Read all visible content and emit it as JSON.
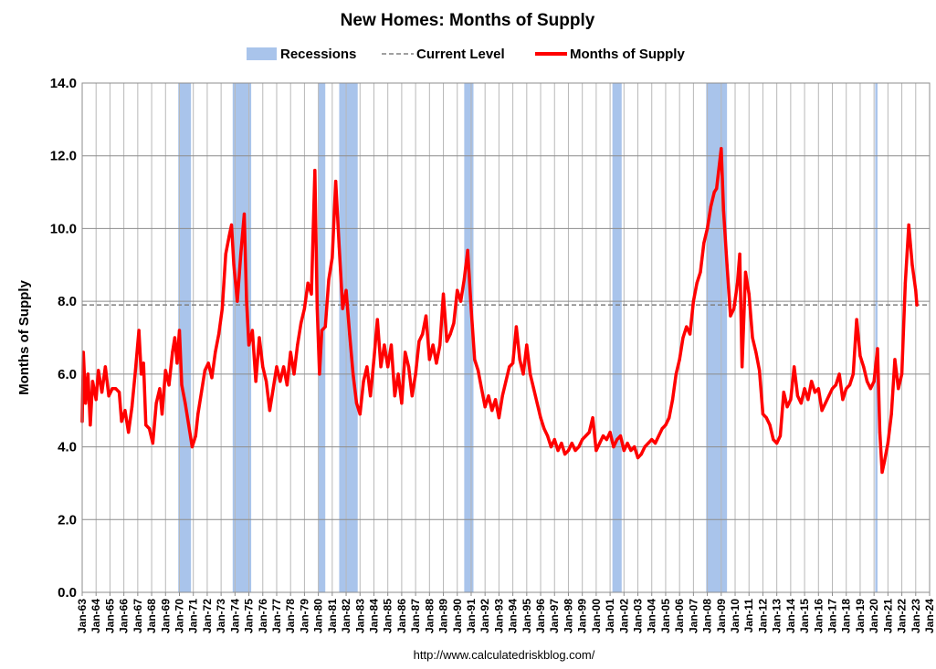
{
  "chart_data": {
    "type": "line",
    "title": "New Homes: Months of Supply",
    "ylabel": "Months of Supply",
    "xlabel": "",
    "source": "http://www.calculatedriskblog.com/",
    "ylim": [
      0,
      14
    ],
    "xlim": [
      "Jan-63",
      "Jan-24"
    ],
    "y_ticks": [
      "0.0",
      "2.0",
      "4.0",
      "6.0",
      "8.0",
      "10.0",
      "12.0",
      "14.0"
    ],
    "x_ticks": [
      "Jan-63",
      "Jan-64",
      "Jan-65",
      "Jan-66",
      "Jan-67",
      "Jan-68",
      "Jan-69",
      "Jan-70",
      "Jan-71",
      "Jan-72",
      "Jan-73",
      "Jan-74",
      "Jan-75",
      "Jan-76",
      "Jan-77",
      "Jan-78",
      "Jan-79",
      "Jan-80",
      "Jan-81",
      "Jan-82",
      "Jan-83",
      "Jan-84",
      "Jan-85",
      "Jan-86",
      "Jan-87",
      "Jan-88",
      "Jan-89",
      "Jan-90",
      "Jan-91",
      "Jan-92",
      "Jan-93",
      "Jan-94",
      "Jan-95",
      "Jan-96",
      "Jan-97",
      "Jan-98",
      "Jan-99",
      "Jan-00",
      "Jan-01",
      "Jan-02",
      "Jan-03",
      "Jan-04",
      "Jan-05",
      "Jan-06",
      "Jan-07",
      "Jan-08",
      "Jan-09",
      "Jan-10",
      "Jan-11",
      "Jan-12",
      "Jan-13",
      "Jan-14",
      "Jan-15",
      "Jan-16",
      "Jan-17",
      "Jan-18",
      "Jan-19",
      "Jan-20",
      "Jan-21",
      "Jan-22",
      "Jan-23",
      "Jan-24"
    ],
    "grid": true,
    "legend_position": "top-center",
    "legend": [
      {
        "name": "Recessions",
        "kind": "band",
        "color": "#a9c4eb"
      },
      {
        "name": "Current Level",
        "kind": "dashed",
        "color": "#808080"
      },
      {
        "name": "Months of Supply",
        "kind": "line",
        "color": "#ff0000"
      }
    ],
    "current_level": 7.9,
    "recessions": [
      {
        "start": "Dec-69",
        "end": "Nov-70"
      },
      {
        "start": "Nov-73",
        "end": "Mar-75"
      },
      {
        "start": "Jan-80",
        "end": "Jul-80"
      },
      {
        "start": "Jul-81",
        "end": "Nov-82"
      },
      {
        "start": "Jul-90",
        "end": "Mar-91"
      },
      {
        "start": "Mar-01",
        "end": "Nov-01"
      },
      {
        "start": "Dec-07",
        "end": "Jun-09"
      },
      {
        "start": "Feb-20",
        "end": "Apr-20"
      }
    ],
    "series": [
      {
        "name": "Months of Supply",
        "color": "#ff0000",
        "points": [
          [
            "Jan-63",
            4.7
          ],
          [
            "Feb-63",
            6.6
          ],
          [
            "Apr-63",
            5.2
          ],
          [
            "Jun-63",
            6.0
          ],
          [
            "Aug-63",
            4.6
          ],
          [
            "Oct-63",
            5.8
          ],
          [
            "Jan-64",
            5.3
          ],
          [
            "Mar-64",
            6.1
          ],
          [
            "Jun-64",
            5.5
          ],
          [
            "Sep-64",
            6.2
          ],
          [
            "Dec-64",
            5.4
          ],
          [
            "Mar-65",
            5.6
          ],
          [
            "Jun-65",
            5.6
          ],
          [
            "Sep-65",
            5.5
          ],
          [
            "Nov-65",
            4.7
          ],
          [
            "Feb-66",
            5.0
          ],
          [
            "May-66",
            4.4
          ],
          [
            "Aug-66",
            5.1
          ],
          [
            "Nov-66",
            6.1
          ],
          [
            "Feb-67",
            7.2
          ],
          [
            "Apr-67",
            6.0
          ],
          [
            "Jun-67",
            6.3
          ],
          [
            "Aug-67",
            4.6
          ],
          [
            "Nov-67",
            4.5
          ],
          [
            "Feb-68",
            4.1
          ],
          [
            "May-68",
            5.2
          ],
          [
            "Aug-68",
            5.6
          ],
          [
            "Oct-68",
            4.9
          ],
          [
            "Jan-69",
            6.1
          ],
          [
            "Apr-69",
            5.7
          ],
          [
            "Jul-69",
            6.6
          ],
          [
            "Sep-69",
            7.0
          ],
          [
            "Nov-69",
            6.3
          ],
          [
            "Jan-70",
            7.2
          ],
          [
            "Mar-70",
            5.7
          ],
          [
            "Jun-70",
            5.2
          ],
          [
            "Sep-70",
            4.6
          ],
          [
            "Dec-70",
            4.0
          ],
          [
            "Mar-71",
            4.3
          ],
          [
            "May-71",
            4.9
          ],
          [
            "Aug-71",
            5.5
          ],
          [
            "Nov-71",
            6.1
          ],
          [
            "Feb-72",
            6.3
          ],
          [
            "May-72",
            5.9
          ],
          [
            "Aug-72",
            6.6
          ],
          [
            "Nov-72",
            7.1
          ],
          [
            "Feb-73",
            7.8
          ],
          [
            "May-73",
            9.3
          ],
          [
            "Aug-73",
            9.8
          ],
          [
            "Oct-73",
            10.1
          ],
          [
            "Dec-73",
            9.0
          ],
          [
            "Mar-74",
            8.0
          ],
          [
            "Jun-74",
            9.3
          ],
          [
            "Sep-74",
            10.4
          ],
          [
            "Nov-74",
            8.0
          ],
          [
            "Jan-75",
            6.8
          ],
          [
            "Apr-75",
            7.2
          ],
          [
            "Jul-75",
            5.8
          ],
          [
            "Oct-75",
            7.0
          ],
          [
            "Jan-76",
            6.2
          ],
          [
            "Apr-76",
            5.8
          ],
          [
            "Jul-76",
            5.0
          ],
          [
            "Oct-76",
            5.6
          ],
          [
            "Jan-77",
            6.2
          ],
          [
            "Apr-77",
            5.8
          ],
          [
            "Jul-77",
            6.2
          ],
          [
            "Oct-77",
            5.7
          ],
          [
            "Jan-78",
            6.6
          ],
          [
            "Apr-78",
            6.0
          ],
          [
            "Jul-78",
            6.8
          ],
          [
            "Oct-78",
            7.4
          ],
          [
            "Jan-79",
            7.8
          ],
          [
            "Apr-79",
            8.5
          ],
          [
            "Jul-79",
            8.2
          ],
          [
            "Oct-79",
            11.6
          ],
          [
            "Dec-79",
            7.8
          ],
          [
            "Feb-80",
            6.0
          ],
          [
            "Apr-80",
            7.2
          ],
          [
            "Jul-80",
            7.3
          ],
          [
            "Oct-80",
            8.6
          ],
          [
            "Jan-81",
            9.2
          ],
          [
            "Apr-81",
            11.3
          ],
          [
            "Jul-81",
            9.5
          ],
          [
            "Oct-81",
            7.8
          ],
          [
            "Jan-82",
            8.3
          ],
          [
            "Apr-82",
            7.1
          ],
          [
            "Jul-82",
            6.0
          ],
          [
            "Oct-82",
            5.2
          ],
          [
            "Jan-83",
            4.9
          ],
          [
            "Apr-83",
            5.8
          ],
          [
            "Jul-83",
            6.2
          ],
          [
            "Oct-83",
            5.4
          ],
          [
            "Jan-84",
            6.4
          ],
          [
            "Apr-84",
            7.5
          ],
          [
            "Jul-84",
            6.2
          ],
          [
            "Oct-84",
            6.8
          ],
          [
            "Jan-85",
            6.2
          ],
          [
            "Apr-85",
            6.8
          ],
          [
            "Jul-85",
            5.4
          ],
          [
            "Oct-85",
            6.0
          ],
          [
            "Jan-86",
            5.2
          ],
          [
            "Apr-86",
            6.6
          ],
          [
            "Jul-86",
            6.2
          ],
          [
            "Oct-86",
            5.4
          ],
          [
            "Jan-87",
            6.0
          ],
          [
            "Apr-87",
            6.9
          ],
          [
            "Jul-87",
            7.1
          ],
          [
            "Oct-87",
            7.6
          ],
          [
            "Jan-88",
            6.4
          ],
          [
            "Apr-88",
            6.8
          ],
          [
            "Jul-88",
            6.3
          ],
          [
            "Oct-88",
            6.8
          ],
          [
            "Jan-89",
            8.2
          ],
          [
            "Apr-89",
            6.9
          ],
          [
            "Jul-89",
            7.1
          ],
          [
            "Oct-89",
            7.4
          ],
          [
            "Jan-90",
            8.3
          ],
          [
            "Apr-90",
            8.0
          ],
          [
            "Jul-90",
            8.6
          ],
          [
            "Oct-90",
            9.4
          ],
          [
            "Jan-91",
            7.8
          ],
          [
            "Apr-91",
            6.4
          ],
          [
            "Jul-91",
            6.1
          ],
          [
            "Oct-91",
            5.6
          ],
          [
            "Jan-92",
            5.1
          ],
          [
            "Apr-92",
            5.4
          ],
          [
            "Jul-92",
            5.0
          ],
          [
            "Oct-92",
            5.3
          ],
          [
            "Jan-93",
            4.8
          ],
          [
            "Apr-93",
            5.4
          ],
          [
            "Jul-93",
            5.8
          ],
          [
            "Oct-93",
            6.2
          ],
          [
            "Jan-94",
            6.3
          ],
          [
            "Apr-94",
            7.3
          ],
          [
            "Jul-94",
            6.4
          ],
          [
            "Oct-94",
            6.0
          ],
          [
            "Jan-95",
            6.8
          ],
          [
            "Apr-95",
            6.0
          ],
          [
            "Jul-95",
            5.6
          ],
          [
            "Oct-95",
            5.2
          ],
          [
            "Jan-96",
            4.8
          ],
          [
            "Apr-96",
            4.5
          ],
          [
            "Jul-96",
            4.3
          ],
          [
            "Oct-96",
            4.0
          ],
          [
            "Jan-97",
            4.2
          ],
          [
            "Apr-97",
            3.9
          ],
          [
            "Jul-97",
            4.1
          ],
          [
            "Oct-97",
            3.8
          ],
          [
            "Jan-98",
            3.9
          ],
          [
            "Apr-98",
            4.1
          ],
          [
            "Jul-98",
            3.9
          ],
          [
            "Oct-98",
            4.0
          ],
          [
            "Jan-99",
            4.2
          ],
          [
            "Apr-99",
            4.3
          ],
          [
            "Jul-99",
            4.4
          ],
          [
            "Oct-99",
            4.8
          ],
          [
            "Jan-00",
            3.9
          ],
          [
            "Apr-00",
            4.1
          ],
          [
            "Jul-00",
            4.3
          ],
          [
            "Oct-00",
            4.2
          ],
          [
            "Jan-01",
            4.4
          ],
          [
            "Apr-01",
            4.0
          ],
          [
            "Jul-01",
            4.2
          ],
          [
            "Oct-01",
            4.3
          ],
          [
            "Jan-02",
            3.9
          ],
          [
            "Apr-02",
            4.1
          ],
          [
            "Jul-02",
            3.9
          ],
          [
            "Oct-02",
            4.0
          ],
          [
            "Jan-03",
            3.7
          ],
          [
            "Apr-03",
            3.8
          ],
          [
            "Jul-03",
            4.0
          ],
          [
            "Oct-03",
            4.1
          ],
          [
            "Jan-04",
            4.2
          ],
          [
            "Apr-04",
            4.1
          ],
          [
            "Jul-04",
            4.3
          ],
          [
            "Oct-04",
            4.5
          ],
          [
            "Jan-05",
            4.6
          ],
          [
            "Apr-05",
            4.8
          ],
          [
            "Jul-05",
            5.3
          ],
          [
            "Oct-05",
            6.0
          ],
          [
            "Jan-06",
            6.4
          ],
          [
            "Apr-06",
            7.0
          ],
          [
            "Jul-06",
            7.3
          ],
          [
            "Oct-06",
            7.1
          ],
          [
            "Jan-07",
            8.0
          ],
          [
            "Apr-07",
            8.5
          ],
          [
            "Jul-07",
            8.8
          ],
          [
            "Oct-07",
            9.6
          ],
          [
            "Jan-08",
            10.0
          ],
          [
            "Apr-08",
            10.6
          ],
          [
            "Jul-08",
            11.0
          ],
          [
            "Sep-08",
            11.1
          ],
          [
            "Jan-09",
            12.2
          ],
          [
            "Mar-09",
            10.5
          ],
          [
            "Jun-09",
            9.0
          ],
          [
            "Sep-09",
            7.6
          ],
          [
            "Dec-09",
            7.8
          ],
          [
            "Mar-10",
            8.5
          ],
          [
            "May-10",
            9.3
          ],
          [
            "Jul-10",
            6.2
          ],
          [
            "Oct-10",
            8.8
          ],
          [
            "Jan-11",
            8.2
          ],
          [
            "Apr-11",
            7.0
          ],
          [
            "Jul-11",
            6.6
          ],
          [
            "Oct-11",
            6.1
          ],
          [
            "Jan-12",
            4.9
          ],
          [
            "Apr-12",
            4.8
          ],
          [
            "Jul-12",
            4.6
          ],
          [
            "Oct-12",
            4.2
          ],
          [
            "Jan-13",
            4.1
          ],
          [
            "Apr-13",
            4.3
          ],
          [
            "Jul-13",
            5.5
          ],
          [
            "Oct-13",
            5.1
          ],
          [
            "Jan-14",
            5.3
          ],
          [
            "Apr-14",
            6.2
          ],
          [
            "Jul-14",
            5.4
          ],
          [
            "Oct-14",
            5.2
          ],
          [
            "Jan-15",
            5.6
          ],
          [
            "Apr-15",
            5.3
          ],
          [
            "Jul-15",
            5.8
          ],
          [
            "Oct-15",
            5.5
          ],
          [
            "Jan-16",
            5.6
          ],
          [
            "Apr-16",
            5.0
          ],
          [
            "Jul-16",
            5.2
          ],
          [
            "Oct-16",
            5.4
          ],
          [
            "Jan-17",
            5.6
          ],
          [
            "Apr-17",
            5.7
          ],
          [
            "Jul-17",
            6.0
          ],
          [
            "Oct-17",
            5.3
          ],
          [
            "Jan-18",
            5.6
          ],
          [
            "Apr-18",
            5.7
          ],
          [
            "Jul-18",
            6.0
          ],
          [
            "Oct-18",
            7.5
          ],
          [
            "Jan-19",
            6.5
          ],
          [
            "Apr-19",
            6.2
          ],
          [
            "Jul-19",
            5.8
          ],
          [
            "Oct-19",
            5.6
          ],
          [
            "Jan-20",
            5.8
          ],
          [
            "Apr-20",
            6.7
          ],
          [
            "Jun-20",
            4.4
          ],
          [
            "Aug-20",
            3.3
          ],
          [
            "Oct-20",
            3.6
          ],
          [
            "Jan-21",
            4.1
          ],
          [
            "Apr-21",
            4.9
          ],
          [
            "Jul-21",
            6.4
          ],
          [
            "Oct-21",
            5.6
          ],
          [
            "Jan-22",
            6.0
          ],
          [
            "Apr-22",
            8.5
          ],
          [
            "Jul-22",
            10.1
          ],
          [
            "Oct-22",
            9.0
          ],
          [
            "Jan-23",
            8.3
          ],
          [
            "Feb-23",
            7.9
          ]
        ]
      }
    ]
  }
}
